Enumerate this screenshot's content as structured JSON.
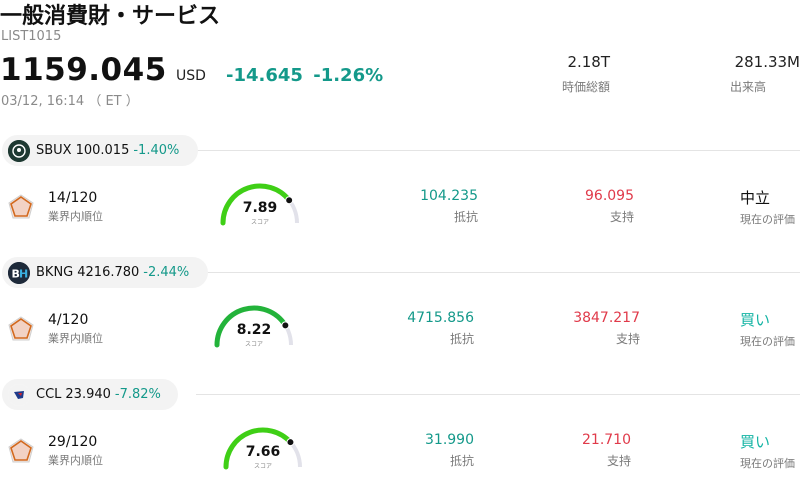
{
  "header": {
    "title": "一般消費財・サービス",
    "code": "LIST1015",
    "price": "1159.045",
    "currency": "USD",
    "change": "-14.645",
    "change_pct": "-1.26%",
    "datetime": "03/12, 16:14 （ ET ）"
  },
  "stats": [
    {
      "value": "2.18T",
      "label": "時価総額"
    },
    {
      "value": "281.33M",
      "label": "出来高"
    }
  ],
  "stocks": [
    {
      "ticker": "SBUX",
      "price": "100.015",
      "change_pct": "-1.40%",
      "logo_color": "#1e3932",
      "logo_text": "",
      "rank": "14/120",
      "rank_label": "業界内順位",
      "score": "7.89",
      "score_value": 7.89,
      "score_label": "スコア",
      "resistance": "104.235",
      "resistance_label": "抵抗",
      "support": "96.095",
      "support_label": "支持",
      "rating": "中立",
      "rating_type": "neutral",
      "rating_label": "現在の評価",
      "gauge_color": "#3fcf16"
    },
    {
      "ticker": "BKNG",
      "price": "4216.780",
      "change_pct": "-2.44%",
      "logo_color": "#1e2a3a",
      "logo_text": "BH",
      "rank": "4/120",
      "rank_label": "業界内順位",
      "score": "8.22",
      "score_value": 8.22,
      "score_label": "スコア",
      "resistance": "4715.856",
      "resistance_label": "抵抗",
      "support": "3847.217",
      "support_label": "支持",
      "rating": "買い",
      "rating_type": "buy",
      "rating_label": "現在の評価",
      "gauge_color": "#23b33a"
    },
    {
      "ticker": "CCL",
      "price": "23.940",
      "change_pct": "-7.82%",
      "logo_color": "#ffffff",
      "logo_text": "",
      "rank": "29/120",
      "rank_label": "業界内順位",
      "score": "7.66",
      "score_value": 7.66,
      "score_label": "スコア",
      "resistance": "31.990",
      "resistance_label": "抵抗",
      "support": "21.710",
      "support_label": "支持",
      "rating": "買い",
      "rating_type": "buy",
      "rating_label": "現在の評価",
      "gauge_color": "#3fcf16"
    }
  ]
}
